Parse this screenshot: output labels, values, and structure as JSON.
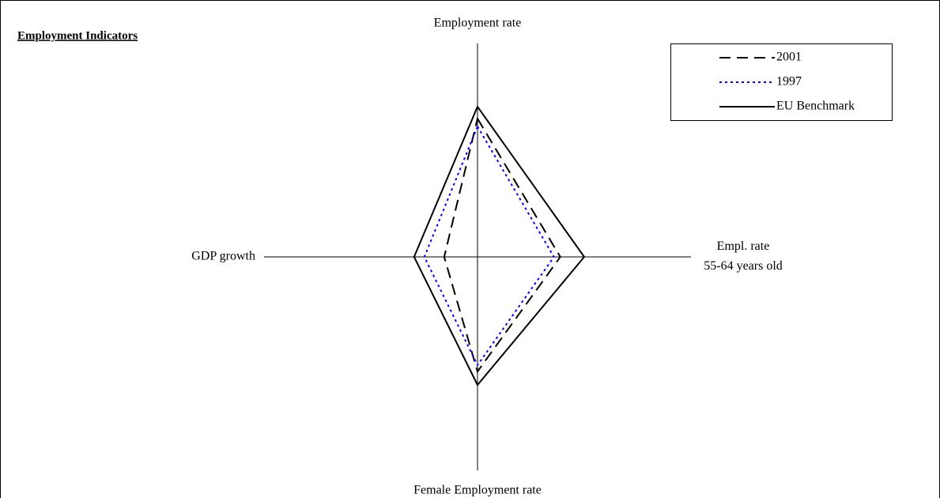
{
  "chart_data": {
    "type": "radar",
    "title": "Employment Indicators",
    "categories": [
      "Employment rate",
      "Empl. rate\n55-64 years old",
      "Female Employment rate",
      "GDP growth"
    ],
    "rlim": [
      0,
      100
    ],
    "legend": "top-right",
    "series": [
      {
        "name": "2001",
        "color": "#000000",
        "style": "dashed",
        "values": [
          64.8,
          38.8,
          53.7,
          15.6
        ]
      },
      {
        "name": "1997",
        "color": "#0000ff",
        "style": "dotted",
        "values": [
          61.1,
          35.8,
          50.7,
          24.9
        ]
      },
      {
        "name": "EU Benchmark",
        "color": "#000000",
        "style": "solid",
        "values": [
          70.4,
          50,
          60,
          29.7
        ]
      }
    ]
  }
}
